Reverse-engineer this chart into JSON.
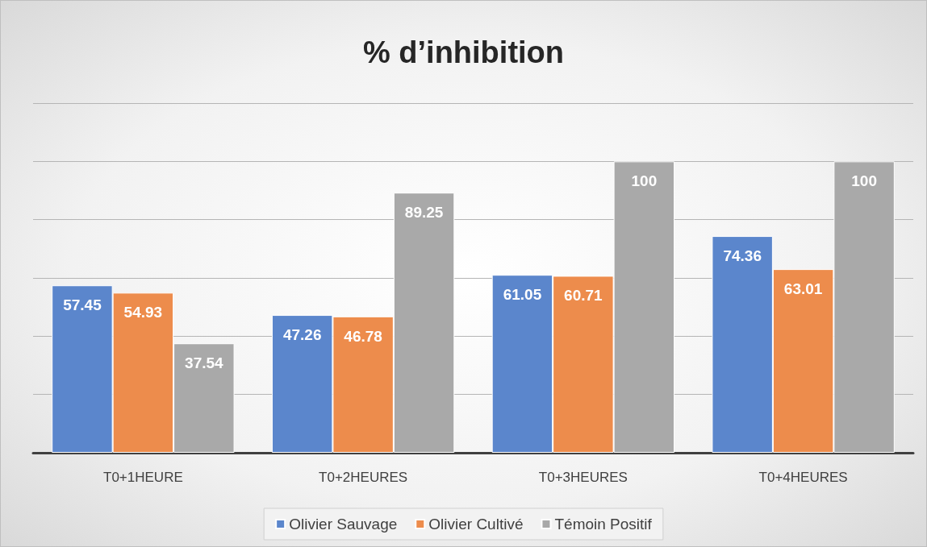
{
  "chart_data": {
    "type": "bar",
    "title": "% d’inhibition",
    "categories": [
      "T0+1HEURE",
      "T0+2HEURES",
      "T0+3HEURES",
      "T0+4HEURES"
    ],
    "series": [
      {
        "name": "Olivier Sauvage",
        "color": "#5b86cc",
        "values": [
          57.45,
          47.26,
          61.05,
          74.36
        ]
      },
      {
        "name": "Olivier Cultivé",
        "color": "#ed8c4c",
        "values": [
          54.93,
          46.78,
          60.71,
          63.01
        ]
      },
      {
        "name": "Témoin Positif",
        "color": "#a9a9a9",
        "values": [
          37.54,
          89.25,
          100,
          100
        ]
      }
    ],
    "ylim": [
      0,
      120
    ],
    "yticks": [
      {
        "value": 0,
        "label": null
      },
      {
        "value": 20,
        "label": null
      },
      {
        "value": 40,
        "label": null
      },
      {
        "value": 60,
        "label": null
      },
      {
        "value": 80,
        "label": null
      },
      {
        "value": 100,
        "label": null
      },
      {
        "value": 120,
        "label": null
      }
    ],
    "grid": "y",
    "tick_labels": "x",
    "data_labels": true,
    "legend": "bottom"
  }
}
